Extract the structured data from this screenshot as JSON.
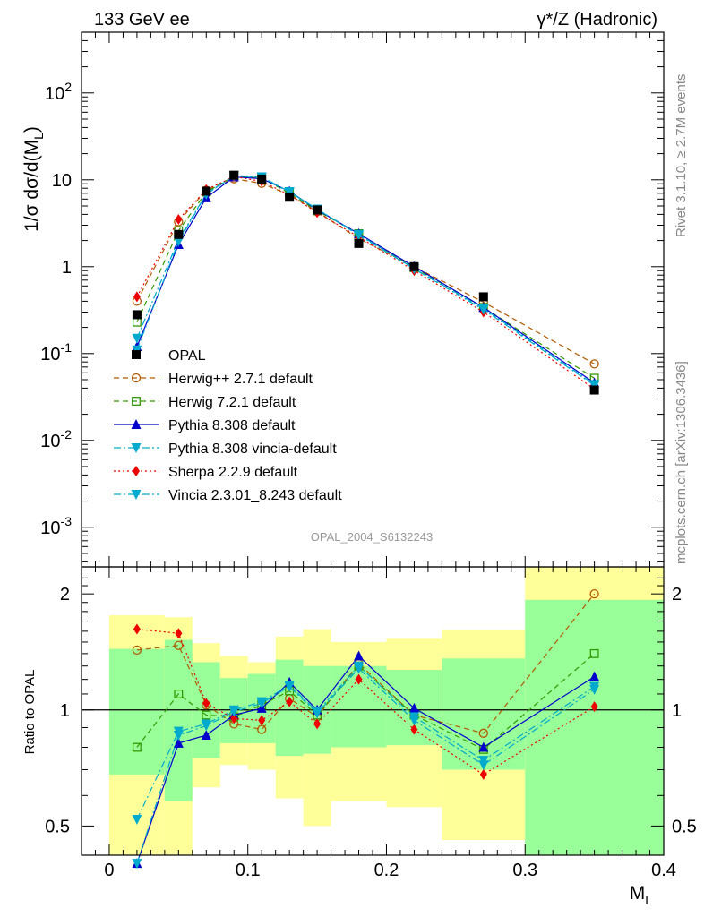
{
  "header": {
    "left": "133 GeV ee",
    "right": "γ*/Z (Hadronic)"
  },
  "side_text": {
    "rivet": "Rivet 3.1.10, ≥ 2.7M events",
    "mcplots": "mcplots.cern.ch [arXiv:1306.3436]"
  },
  "analysis_label": "OPAL_2004_S6132243",
  "colors": {
    "axis": "#000000",
    "band_inner": "#99ff99",
    "band_outer": "#ffff99",
    "analysis_label": "#999999",
    "side_text": "#888888"
  },
  "chart_data": [
    {
      "type": "scatter",
      "panel": "main",
      "ylabel": "1/σ dσ/d(M_L)",
      "yscale": "log",
      "ylim": [
        0.00035,
        500
      ],
      "xlim": [
        -0.02,
        0.4
      ],
      "ytick_labels": [
        "10^2",
        "10",
        "1",
        "10^-1",
        "10^-2",
        "10^-3"
      ],
      "legend_position": "left",
      "x": [
        0.02,
        0.05,
        0.07,
        0.09,
        0.11,
        0.13,
        0.15,
        0.18,
        0.22,
        0.27,
        0.35
      ],
      "series": [
        {
          "name": "OPAL",
          "color": "#000000",
          "marker": "square",
          "line": "none",
          "values": [
            0.28,
            2.35,
            7.4,
            11.3,
            10.2,
            6.3,
            4.5,
            1.85,
            1.0,
            0.45,
            0.038
          ]
        },
        {
          "name": "Herwig++ 2.7.1 default",
          "color": "#b35900",
          "marker": "circle-open",
          "line": "dash",
          "values": [
            0.4,
            3.3,
            7.6,
            10.3,
            9.1,
            6.7,
            4.3,
            2.1,
            1.0,
            0.39,
            0.076
          ]
        },
        {
          "name": "Herwig 7.2.1 default",
          "color": "#339900",
          "marker": "square-open",
          "line": "dash",
          "values": [
            0.23,
            2.6,
            7.2,
            11.0,
            10.5,
            7.0,
            4.4,
            2.4,
            0.97,
            0.34,
            0.052
          ]
        },
        {
          "name": "Pythia 8.308 default",
          "color": "#0000cc",
          "marker": "triangle-up",
          "line": "solid",
          "values": [
            0.12,
            1.8,
            6.2,
            10.8,
            10.3,
            7.4,
            4.5,
            2.4,
            1.0,
            0.34,
            0.046
          ]
        },
        {
          "name": "Pythia 8.308 vincia-default",
          "color": "#00aacc",
          "marker": "triangle-down",
          "line": "dashdot",
          "values": [
            0.15,
            2.05,
            6.9,
            11.2,
            10.8,
            7.3,
            4.6,
            2.35,
            0.95,
            0.33,
            0.044
          ]
        },
        {
          "name": "Sherpa 2.2.9 default",
          "color": "#ee0000",
          "marker": "diamond",
          "line": "dot",
          "values": [
            0.45,
            3.5,
            7.7,
            10.9,
            9.6,
            6.7,
            4.2,
            2.2,
            0.9,
            0.3,
            0.039
          ]
        },
        {
          "name": "Vincia 2.3.01_8.243 default",
          "color": "#00aacc",
          "marker": "triangle-down",
          "line": "dashdot",
          "values": [
            0.11,
            1.95,
            6.8,
            11.1,
            10.7,
            7.2,
            4.6,
            2.3,
            0.94,
            0.32,
            0.043
          ]
        }
      ]
    },
    {
      "type": "scatter",
      "panel": "ratio",
      "ylabel": "Ratio to OPAL",
      "xlabel": "M_L",
      "yscale": "log",
      "ylim": [
        0.42,
        2.35
      ],
      "xlim": [
        -0.02,
        0.4
      ],
      "xtick_labels": [
        "0",
        "0.1",
        "0.2",
        "0.3",
        "0.4"
      ],
      "ytick_labels": [
        "2",
        "1",
        "0.5"
      ],
      "reference_line": 1,
      "bands": [
        {
          "x_low": 0.0,
          "x_high": 0.04,
          "outer": [
            0.42,
            1.76
          ],
          "inner": [
            0.68,
            1.44
          ]
        },
        {
          "x_low": 0.04,
          "x_high": 0.06,
          "outer": [
            0.42,
            1.74
          ],
          "inner": [
            0.58,
            1.52
          ]
        },
        {
          "x_low": 0.06,
          "x_high": 0.08,
          "outer": [
            0.63,
            1.49
          ],
          "inner": [
            0.75,
            1.33
          ]
        },
        {
          "x_low": 0.08,
          "x_high": 0.1,
          "outer": [
            0.72,
            1.38
          ],
          "inner": [
            0.82,
            1.21
          ]
        },
        {
          "x_low": 0.1,
          "x_high": 0.12,
          "outer": [
            0.7,
            1.33
          ],
          "inner": [
            0.82,
            1.24
          ]
        },
        {
          "x_low": 0.12,
          "x_high": 0.14,
          "outer": [
            0.59,
            1.55
          ],
          "inner": [
            0.76,
            1.35
          ]
        },
        {
          "x_low": 0.14,
          "x_high": 0.16,
          "outer": [
            0.5,
            1.62
          ],
          "inner": [
            0.77,
            1.3
          ]
        },
        {
          "x_low": 0.16,
          "x_high": 0.2,
          "outer": [
            0.58,
            1.5
          ],
          "inner": [
            0.8,
            1.3
          ]
        },
        {
          "x_low": 0.2,
          "x_high": 0.24,
          "outer": [
            0.56,
            1.53
          ],
          "inner": [
            0.81,
            1.27
          ]
        },
        {
          "x_low": 0.24,
          "x_high": 0.3,
          "outer": [
            0.46,
            1.61
          ],
          "inner": [
            0.7,
            1.36
          ]
        },
        {
          "x_low": 0.3,
          "x_high": 0.4,
          "outer": [
            0.42,
            2.35
          ],
          "inner": [
            0.42,
            1.93
          ]
        }
      ],
      "x": [
        0.02,
        0.05,
        0.07,
        0.09,
        0.11,
        0.13,
        0.15,
        0.18,
        0.22,
        0.27,
        0.35
      ],
      "series": [
        {
          "name": "Herwig++ 2.7.1 default",
          "color": "#b35900",
          "marker": "circle-open",
          "line": "dash",
          "values": [
            1.43,
            1.47,
            1.03,
            0.92,
            0.89,
            1.07,
            0.96,
            1.32,
            0.97,
            0.87,
            2.0
          ]
        },
        {
          "name": "Herwig 7.2.1 default",
          "color": "#339900",
          "marker": "square-open",
          "line": "dash",
          "values": [
            0.8,
            1.1,
            0.97,
            0.96,
            1.03,
            1.12,
            0.97,
            1.3,
            0.97,
            0.79,
            1.4
          ]
        },
        {
          "name": "Pythia 8.308 default",
          "color": "#0000cc",
          "marker": "triangle-up",
          "line": "solid",
          "values": [
            0.4,
            0.82,
            0.86,
            0.97,
            1.01,
            1.18,
            1.0,
            1.38,
            1.01,
            0.8,
            1.22
          ]
        },
        {
          "name": "Pythia 8.308 vincia-default",
          "color": "#00aacc",
          "marker": "triangle-down",
          "line": "dashdot",
          "values": [
            0.52,
            0.88,
            0.92,
            1.0,
            1.05,
            1.16,
            0.99,
            1.3,
            0.96,
            0.74,
            1.15
          ]
        },
        {
          "name": "Sherpa 2.2.9 default",
          "color": "#ee0000",
          "marker": "diamond",
          "line": "dot",
          "values": [
            1.62,
            1.58,
            1.04,
            0.95,
            0.94,
            1.05,
            0.92,
            1.2,
            0.89,
            0.68,
            1.02
          ]
        },
        {
          "name": "Vincia 2.3.01_8.243 default",
          "color": "#00aacc",
          "marker": "triangle-down",
          "line": "dashdot",
          "values": [
            0.4,
            0.86,
            0.91,
            0.99,
            1.04,
            1.15,
            0.98,
            1.28,
            0.94,
            0.72,
            1.13
          ]
        }
      ]
    }
  ]
}
